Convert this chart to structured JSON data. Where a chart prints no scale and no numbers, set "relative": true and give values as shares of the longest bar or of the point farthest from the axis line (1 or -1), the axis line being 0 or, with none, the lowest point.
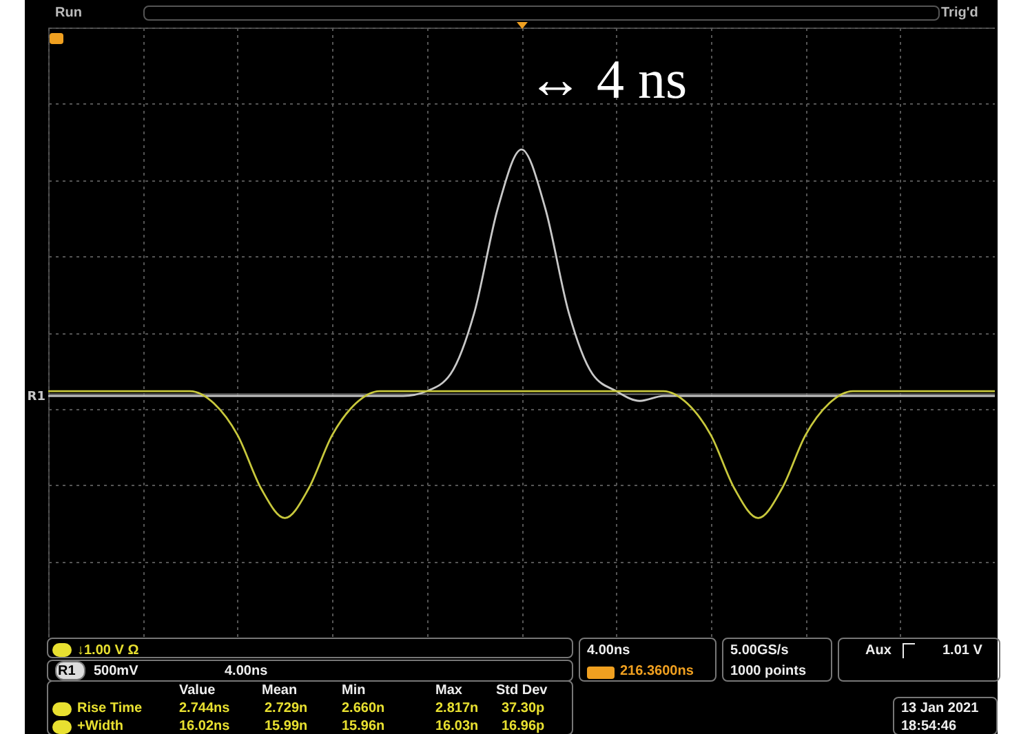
{
  "chart_data": {
    "type": "line",
    "relative": true,
    "grid": true,
    "categories": [
      null,
      null,
      null,
      null,
      null,
      null,
      null,
      null,
      null,
      null,
      null,
      null,
      null,
      null,
      null,
      null,
      null,
      null,
      null,
      null,
      null,
      null,
      null,
      null,
      null,
      null,
      null,
      null,
      null,
      null,
      null,
      null,
      null,
      null,
      null,
      null,
      null,
      null,
      null,
      null,
      null
    ],
    "series": [
      {
        "name": "R1",
        "color": "#c8c8c8",
        "values": [
          -0.01,
          -0.01,
          -0.01,
          -0.01,
          -0.01,
          -0.01,
          -0.01,
          -0.01,
          -0.01,
          -0.01,
          -0.01,
          -0.01,
          -0.01,
          -0.01,
          -0.01,
          -0.01,
          0.01,
          0.08,
          0.33,
          0.76,
          1,
          0.76,
          0.33,
          0.08,
          0.01,
          -0.03,
          -0.01,
          -0.01,
          -0.01,
          -0.01,
          -0.01,
          -0.01,
          -0.01,
          -0.01,
          -0.01,
          -0.01,
          -0.01,
          -0.01,
          -0.01,
          -0.01,
          -0.01
        ]
      },
      {
        "color": "#c8c83c",
        "values": [
          0.01,
          0.01,
          0.01,
          0.01,
          0.01,
          0.01,
          0.01,
          -0.04,
          -0.17,
          -0.39,
          -0.51,
          -0.39,
          -0.17,
          -0.04,
          0.01,
          0.01,
          0.01,
          0.01,
          0.01,
          0.01,
          0.01,
          0.01,
          0.01,
          0.01,
          0.01,
          0.01,
          0.01,
          -0.04,
          -0.17,
          -0.39,
          -0.51,
          -0.39,
          -0.17,
          -0.04,
          0.01,
          0.01,
          0.01,
          0.01,
          0.01,
          0.01,
          0.01
        ]
      }
    ],
    "annotations": [
      "↔ 4  ns",
      "Run",
      "Trig'd",
      "↓1.00 V Ω",
      "R1",
      "500mV",
      "4.00ns",
      "4.00ns",
      "216.3600ns",
      "5.00GS/s",
      "1000 points",
      "Aux",
      "1.01 V",
      "Value",
      "Mean",
      "Min",
      "Max",
      "Std Dev",
      "Rise Time",
      "2.744ns",
      "2.729n",
      "2.660n",
      "2.817n",
      "37.30p",
      "+Width",
      "16.02ns",
      "15.99n",
      "15.96n",
      "16.03n",
      "16.96p",
      "13 Jan 2021",
      "18:54:46"
    ]
  }
}
